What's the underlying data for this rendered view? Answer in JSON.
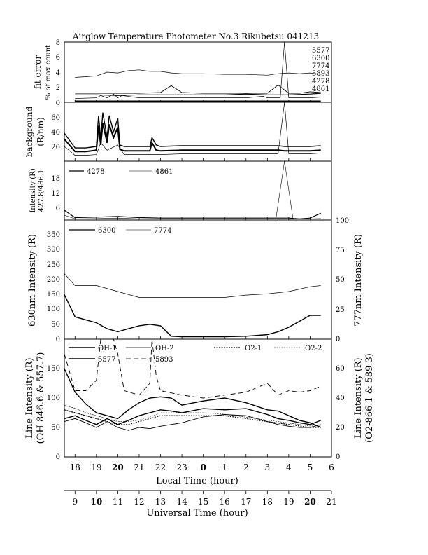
{
  "title": "Airglow Temperature Photometer No.3  Rikubetsu   041213",
  "x_axis_local": {
    "label": "Local Time (hour)",
    "ticks": [
      "18",
      "19",
      "20",
      "21",
      "22",
      "23",
      "0",
      "1",
      "2",
      "3",
      "4",
      "5",
      "6"
    ]
  },
  "x_axis_ut": {
    "label": "Universal Time (hour)",
    "ticks": [
      "9",
      "10",
      "11",
      "12",
      "13",
      "14",
      "15",
      "16",
      "17",
      "18",
      "19",
      "20",
      "21"
    ]
  },
  "chart_data": [
    {
      "type": "line",
      "panel": "fit-error",
      "ylabel_1": "fit error",
      "ylabel_2": "% of max count",
      "ylim": [
        0,
        8
      ],
      "yticks": [
        "0",
        "2",
        "4",
        "6",
        "8"
      ],
      "x_unit": "UT hour",
      "series": [
        {
          "name": "5577",
          "x": [
            9,
            9.5,
            10,
            10.5,
            11,
            11.5,
            12,
            12.5,
            13,
            13.5,
            14,
            15,
            16,
            17,
            18,
            18.5,
            19,
            19.5,
            20,
            20.5
          ],
          "values": [
            3.3,
            3.4,
            3.5,
            4.0,
            3.9,
            4.2,
            4.3,
            4.1,
            4.1,
            3.9,
            3.8,
            3.8,
            3.7,
            3.7,
            3.6,
            3.8,
            3.9,
            3.8,
            3.9,
            3.7
          ]
        },
        {
          "name": "6300",
          "x": [
            9,
            10,
            11,
            12,
            13,
            14,
            15,
            16,
            17,
            18,
            19,
            20,
            20.5
          ],
          "values": [
            1.0,
            1.0,
            0.9,
            1.0,
            1.0,
            1.0,
            1.0,
            1.0,
            1.1,
            1.0,
            1.0,
            1.1,
            1.2
          ]
        },
        {
          "name": "7774",
          "x": [
            9,
            10,
            10.2,
            10.5,
            10.8,
            11,
            11.2,
            12,
            13,
            14,
            15,
            16,
            17,
            17.8,
            18,
            18.2,
            18.6,
            18.8,
            19,
            19.3,
            20,
            20.5
          ],
          "values": [
            0.5,
            0.6,
            0.9,
            0.6,
            1.1,
            0.6,
            0.9,
            0.6,
            0.6,
            0.6,
            0.6,
            0.6,
            0.6,
            0.8,
            0.6,
            0.6,
            0.6,
            8.0,
            0.6,
            0.6,
            0.6,
            0.7
          ]
        },
        {
          "name": "5893",
          "x": [
            9,
            10,
            11,
            12,
            13,
            13.5,
            14,
            15,
            16,
            17,
            18,
            18.5,
            19,
            19.5,
            20,
            20.5
          ],
          "values": [
            1.2,
            1.2,
            1.2,
            1.2,
            1.3,
            2.2,
            1.3,
            1.2,
            1.2,
            1.2,
            1.2,
            2.3,
            1.2,
            1.2,
            1.4,
            1.3
          ]
        },
        {
          "name": "4278",
          "x": [
            9,
            10,
            11,
            12,
            13,
            14,
            15,
            16,
            17,
            18,
            19,
            20,
            20.5
          ],
          "values": [
            0.3,
            0.3,
            0.3,
            0.3,
            0.3,
            0.3,
            0.3,
            0.3,
            0.3,
            0.3,
            0.3,
            0.3,
            0.3
          ]
        },
        {
          "name": "4861",
          "x": [
            9,
            10,
            11,
            12,
            13,
            14,
            15,
            16,
            17,
            18,
            19,
            20,
            20.5
          ],
          "values": [
            0.1,
            0.1,
            0.1,
            0.1,
            0.1,
            0.1,
            0.1,
            0.1,
            0.1,
            0.1,
            0.1,
            0.1,
            0.1
          ]
        }
      ]
    },
    {
      "type": "line",
      "panel": "background",
      "ylabel_1": "background",
      "ylabel_2": "(R/nm)",
      "ylim": [
        0,
        80
      ],
      "yticks": [
        "20",
        "40",
        "60"
      ],
      "x_unit": "UT hour",
      "series": [
        {
          "x": [
            8.5,
            9,
            9.5,
            10,
            10.1,
            10.2,
            10.3,
            10.5,
            10.6,
            10.8,
            11,
            11.1,
            11.3,
            12,
            12.5,
            12.6,
            12.8,
            13,
            14,
            15,
            16,
            17,
            18,
            18.5,
            18.8,
            19,
            19.5,
            20,
            20.5
          ],
          "values": [
            38,
            18,
            18,
            20,
            62,
            30,
            66,
            32,
            62,
            40,
            58,
            22,
            20,
            20,
            20,
            32,
            22,
            20,
            21,
            21,
            21,
            21,
            21,
            21,
            20,
            20,
            20,
            20,
            21
          ]
        },
        {
          "x": [
            8.5,
            9,
            9.5,
            10,
            10.1,
            10.2,
            10.3,
            10.5,
            10.6,
            10.8,
            11,
            11.1,
            11.3,
            12,
            12.5,
            12.6,
            12.8,
            13,
            14,
            15,
            16,
            17,
            18,
            18.5,
            18.8,
            19,
            19.5,
            20,
            20.5
          ],
          "values": [
            30,
            13,
            13,
            15,
            48,
            22,
            52,
            25,
            50,
            32,
            46,
            16,
            14,
            14,
            14,
            25,
            15,
            14,
            15,
            15,
            15,
            15,
            15,
            15,
            14,
            14,
            14,
            14,
            15
          ]
        },
        {
          "x": [
            8.5,
            9,
            9.5,
            10,
            10.2,
            10.5,
            11,
            11.3,
            12,
            13,
            14,
            15,
            16,
            17,
            18,
            18.5,
            18.8,
            19,
            19.5,
            20,
            20.5
          ],
          "values": [
            20,
            8,
            8,
            9,
            25,
            15,
            22,
            9,
            9,
            9,
            10,
            10,
            10,
            10,
            10,
            10,
            80,
            10,
            10,
            10,
            11
          ]
        }
      ]
    },
    {
      "type": "line",
      "panel": "blue-lines",
      "ylabel_1": "Intensity (R)",
      "ylabel_2": "427.8/486.1",
      "ylim": [
        0,
        24
      ],
      "yticks": [
        "6",
        "12",
        "18"
      ],
      "x_unit": "UT hour",
      "series": [
        {
          "name": "4278",
          "x": [
            8.5,
            9,
            10,
            11,
            12,
            13,
            14,
            15,
            16,
            17,
            18,
            19,
            19.5,
            20,
            20.5
          ],
          "values": [
            4,
            1,
            1.2,
            1.5,
            1.0,
            0.8,
            0.8,
            0.8,
            0.8,
            0.8,
            0.8,
            0.8,
            0.5,
            0.8,
            2.8
          ]
        },
        {
          "name": "4861",
          "x": [
            8.5,
            9,
            10,
            11,
            12,
            13,
            14,
            15,
            16,
            17,
            18,
            18.4,
            18.8,
            19.2,
            20,
            20.5
          ],
          "values": [
            2,
            0.5,
            0.6,
            0.8,
            0.5,
            0.5,
            0.5,
            0.5,
            0.5,
            0.5,
            0.5,
            0.5,
            24,
            0.5,
            0.5,
            0.6
          ]
        }
      ]
    },
    {
      "type": "line",
      "panel": "red-lines",
      "ylabel": "630nm Intensity (R)",
      "ylabel_right": "777nm Intensity (R)",
      "ylim": [
        0,
        400
      ],
      "yticks": [
        "0",
        "50",
        "100",
        "150",
        "200",
        "250",
        "300",
        "350"
      ],
      "ylim_right": [
        0,
        100
      ],
      "yticks_right": [
        "0",
        "25",
        "50",
        "75",
        "100"
      ],
      "x_unit": "UT hour",
      "series": [
        {
          "name": "6300",
          "x": [
            8.5,
            9,
            9.5,
            10,
            10.5,
            11,
            11.5,
            12,
            12.5,
            13,
            13.5,
            14,
            15,
            16,
            17,
            18,
            18.5,
            19,
            19.5,
            20,
            20.5
          ],
          "values": [
            150,
            75,
            65,
            55,
            35,
            25,
            35,
            45,
            50,
            45,
            10,
            8,
            8,
            8,
            10,
            15,
            25,
            40,
            60,
            80,
            80
          ]
        },
        {
          "name": "7774",
          "x": [
            8.5,
            9,
            10,
            11,
            12,
            13,
            14,
            15,
            16,
            17,
            18,
            19,
            19.5,
            20,
            20.5
          ],
          "values": [
            55,
            45,
            45,
            40,
            35,
            35,
            35,
            35,
            35,
            37,
            38,
            40,
            42,
            44,
            45
          ]
        }
      ]
    },
    {
      "type": "line",
      "panel": "oh-o2",
      "ylabel_1": "Line Intensity (R)",
      "ylabel_2": "(OH-846.6 & 557.7)",
      "ylabel_right_1": "Line Intensity (R)",
      "ylabel_right_2": "(O2-866.1 & 589.3)",
      "ylim": [
        0,
        200
      ],
      "yticks": [
        "0",
        "50",
        "100",
        "150"
      ],
      "ylim_right": [
        0,
        80
      ],
      "yticks_right": [
        "0",
        "20",
        "40",
        "60"
      ],
      "x_unit": "UT hour",
      "series": [
        {
          "name": "OH-1",
          "x": [
            8.5,
            9,
            9.5,
            10,
            10.5,
            11,
            11.5,
            12,
            12.5,
            13,
            13.5,
            14,
            15,
            16,
            17,
            18,
            18.5,
            19,
            19.5,
            20,
            20.5
          ],
          "values": [
            65,
            70,
            62,
            55,
            65,
            55,
            62,
            70,
            75,
            80,
            78,
            75,
            82,
            80,
            82,
            72,
            65,
            62,
            58,
            55,
            62
          ]
        },
        {
          "name": "OH-2",
          "x": [
            8.5,
            9,
            9.5,
            10,
            10.5,
            11,
            11.5,
            12,
            12.5,
            13,
            13.5,
            14,
            15,
            16,
            17,
            18,
            18.5,
            19,
            19.5,
            20,
            20.5
          ],
          "values": [
            60,
            65,
            58,
            50,
            60,
            50,
            45,
            50,
            48,
            52,
            55,
            58,
            68,
            72,
            70,
            60,
            55,
            52,
            50,
            50,
            55
          ]
        },
        {
          "name": "5577",
          "x": [
            8.5,
            9,
            9.5,
            10,
            10.5,
            11,
            11.5,
            12,
            12.5,
            13,
            13.5,
            14,
            15,
            16,
            17,
            18,
            18.5,
            19,
            19.5,
            20,
            20.5
          ],
          "values": [
            150,
            110,
            90,
            75,
            70,
            65,
            80,
            92,
            100,
            102,
            100,
            88,
            95,
            100,
            92,
            80,
            78,
            70,
            62,
            58,
            50
          ]
        },
        {
          "name": "5893",
          "x": [
            8.5,
            9,
            9.5,
            10,
            10.2,
            10.5,
            10.8,
            11,
            11.3,
            12,
            12.5,
            12.6,
            12.8,
            13,
            14,
            15,
            16,
            17,
            18,
            18.5,
            19,
            19.5,
            20,
            20.5
          ],
          "values": [
            70,
            45,
            45,
            52,
            95,
            80,
            95,
            70,
            45,
            42,
            50,
            90,
            55,
            45,
            42,
            40,
            42,
            44,
            50,
            42,
            45,
            44,
            45,
            48
          ]
        },
        {
          "name": "O2-1",
          "x": [
            8.5,
            9,
            9.5,
            10,
            10.5,
            11,
            11.5,
            12,
            12.5,
            13,
            14,
            15,
            16,
            17,
            18,
            19,
            20,
            20.5
          ],
          "values": [
            32,
            30,
            28,
            26,
            24,
            22,
            22,
            24,
            26,
            28,
            28,
            28,
            28,
            26,
            24,
            22,
            20,
            20
          ]
        },
        {
          "name": "O2-2",
          "x": [
            8.5,
            9,
            9.5,
            10,
            10.5,
            11,
            11.5,
            12,
            12.5,
            13,
            14,
            15,
            16,
            17,
            18,
            19,
            20,
            20.5
          ],
          "values": [
            35,
            33,
            30,
            28,
            26,
            24,
            24,
            25,
            27,
            30,
            30,
            30,
            29,
            27,
            25,
            23,
            21,
            21
          ]
        }
      ]
    }
  ],
  "colors": {
    "line": "#000000",
    "background": "#ffffff"
  }
}
